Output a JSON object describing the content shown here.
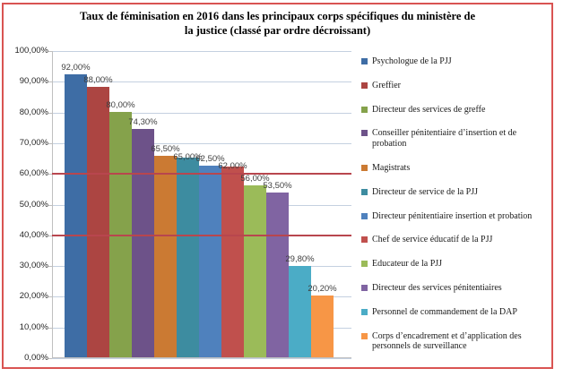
{
  "figure": {
    "title_line1": "Taux de féminisation en 2016 dans les principaux corps spécifiques du ministère de",
    "title_line2": "la justice (classé par ordre décroissant)"
  },
  "colors": {
    "figure_border": "#D95452",
    "gridline": "#C4D0E0",
    "axis_line": "#BFBFBF",
    "reference_line": "#B8464E",
    "data_label": "#3F3F3F",
    "axis_tick_label": "#262626",
    "legend_text": "#1A1A1A"
  },
  "chart_data": {
    "type": "bar",
    "title": "Taux de féminisation en 2016 dans les principaux corps spécifiques du ministère de la justice (classé par ordre décroissant)",
    "categories": [
      "Psychologue de la PJJ",
      "Greffier",
      "Directeur des services de greffe",
      "Conseiller pénitentiaire d’insertion et de probation",
      "Magistrats",
      "Directeur de service de la PJJ",
      "Directeur pénitentiaire insertion et probation",
      "Chef de service éducatif de la PJJ",
      "Educateur de la PJJ",
      "Directeur des services pénitentiaires",
      "Personnel de commandement de  la DAP",
      "Corps d’encadrement et d’application  des personnels de  surveillance"
    ],
    "values": [
      92.0,
      88.0,
      80.0,
      74.3,
      65.5,
      65.0,
      62.5,
      62.0,
      56.0,
      53.5,
      29.8,
      20.2
    ],
    "value_labels": [
      "92,00%",
      "88,00%",
      "80,00%",
      "74,30%",
      "65,50%",
      "65,00%",
      "62,50%",
      "62,00%",
      "56,00%",
      "53,50%",
      "29,80%",
      "20,20%"
    ],
    "bar_colors": [
      "#3E6DA5",
      "#AC4542",
      "#85A24B",
      "#6D5289",
      "#CB7A33",
      "#3D8CA0",
      "#4F81BD",
      "#C0504D",
      "#9BBB59",
      "#8064A2",
      "#4BACC6",
      "#F79646"
    ],
    "y_ticks": [
      "100,00%",
      "90,00%",
      "80,00%",
      "70,00%",
      "60,00%",
      "50,00%",
      "40,00%",
      "30,00%",
      "20,00%",
      "10,00%",
      "0,00%"
    ],
    "ylim": [
      0,
      100
    ],
    "grid": true,
    "legend_position": "right",
    "reference_lines": [
      60,
      40
    ]
  }
}
